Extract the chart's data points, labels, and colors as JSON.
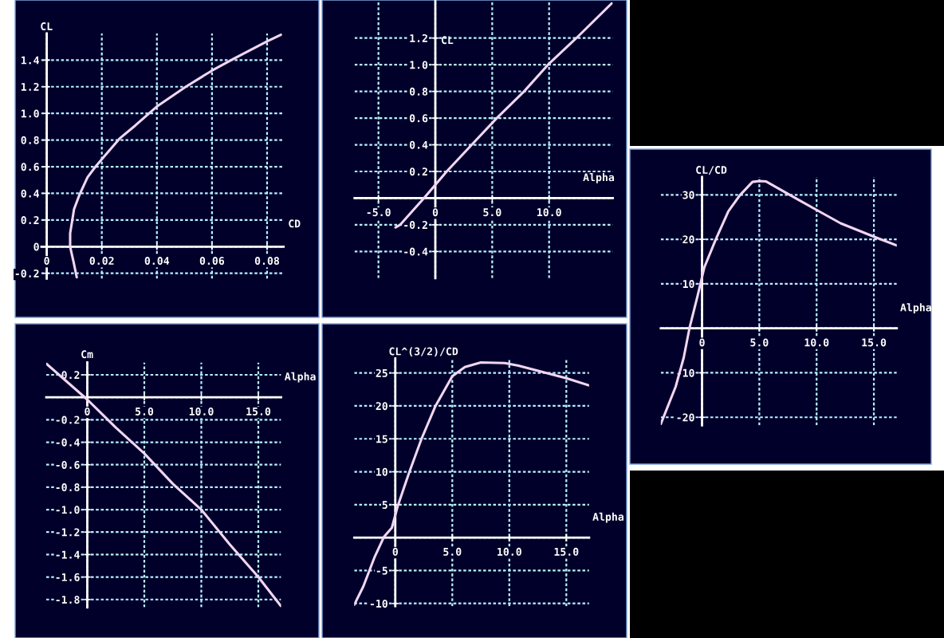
{
  "chart_data": [
    {
      "type": "line",
      "xlabel": "CD",
      "ylabel": "CL",
      "x": [
        0.0109,
        0.0098,
        0.0085,
        0.0085,
        0.0093,
        0.0099,
        0.0119,
        0.0148,
        0.0177,
        0.0206,
        0.0264,
        0.0322,
        0.0399,
        0.0505,
        0.0599,
        0.0679,
        0.08,
        0.085
      ],
      "values": [
        -0.23,
        -0.12,
        0.0,
        0.1,
        0.2,
        0.28,
        0.39,
        0.52,
        0.6,
        0.67,
        0.81,
        0.91,
        1.05,
        1.2,
        1.32,
        1.41,
        1.54,
        1.59
      ],
      "color": "#f2d6f2",
      "xlim": [
        -0.002,
        0.086
      ],
      "ylim": [
        -0.24,
        1.6
      ],
      "xticks": [
        0,
        0.02,
        0.04,
        0.06,
        0.08
      ],
      "yticks": [
        -0.2,
        0,
        0.2,
        0.4,
        0.6,
        0.8,
        {
          "value": 1.0,
          "label": "1.0"
        },
        1.2,
        1.4
      ],
      "grid": true
    },
    {
      "type": "line",
      "xlabel": "Alpha",
      "ylabel": "CL",
      "x": [
        -3.5,
        -3.1,
        -1.0,
        1.0,
        3.2,
        5.4,
        7.8,
        9.9,
        12.4,
        15.5
      ],
      "values": [
        -0.22,
        -0.2,
        0.0,
        0.2,
        0.4,
        0.6,
        0.8,
        1.0,
        1.2,
        1.46
      ],
      "color": "#f2d6f2",
      "xlim": [
        -7.1,
        15.6
      ],
      "ylim": [
        -0.6,
        1.48
      ],
      "xticks": [
        {
          "value": -5,
          "label": "-5.0"
        },
        0,
        {
          "value": 5,
          "label": "5.0"
        },
        {
          "value": 10,
          "label": "10.0"
        }
      ],
      "yticks": [
        -0.4,
        -0.2,
        {
          "value": 0,
          "label": null
        },
        0.2,
        0.4,
        0.6,
        0.8,
        {
          "value": 1.0,
          "label": "1.0"
        },
        1.2
      ],
      "grid": true
    },
    {
      "type": "line",
      "xlabel": "Alpha",
      "ylabel": "CL/CD",
      "x": [
        -3.6,
        -2.3,
        -1.6,
        -1.1,
        -0.4,
        0.2,
        1.2,
        2.3,
        3.3,
        4.4,
        5.0,
        5.6,
        7.5,
        10.0,
        12.1,
        15.0,
        17.0
      ],
      "values": [
        -21.5,
        -13.1,
        -6.6,
        0,
        7.2,
        13.7,
        20,
        26.3,
        29.9,
        32.9,
        33.1,
        33.0,
        30.2,
        26.6,
        23.6,
        20.6,
        18.6
      ],
      "color": "#f2d6f2",
      "xlim": [
        -3.6,
        17.0
      ],
      "ylim": [
        -21.8,
        34
      ],
      "xticks": [
        0,
        {
          "value": 5,
          "label": "5.0"
        },
        {
          "value": 10,
          "label": "10.0"
        },
        {
          "value": 15,
          "label": "15.0"
        }
      ],
      "yticks": [
        -20,
        -10,
        {
          "value": 0,
          "label": null
        },
        10,
        20,
        30
      ],
      "grid": true
    },
    {
      "type": "line",
      "xlabel": "Alpha",
      "ylabel": "Cm",
      "x": [
        -3.6,
        0,
        2.5,
        5.0,
        7.5,
        10.0,
        12.5,
        15.0,
        17.0
      ],
      "values": [
        0.3,
        -0.02,
        -0.27,
        -0.5,
        -0.77,
        -1.0,
        -1.31,
        -1.6,
        -1.86
      ],
      "color": "#f2d6f2",
      "xlim": [
        -3.6,
        17.0
      ],
      "ylim": [
        -1.87,
        0.31
      ],
      "xticks": [
        0,
        {
          "value": 5,
          "label": "5.0"
        },
        {
          "value": 10,
          "label": "10.0"
        },
        {
          "value": 15,
          "label": "15.0"
        }
      ],
      "yticks": [
        -1.8,
        -1.6,
        -1.4,
        -1.2,
        {
          "value": -1.0,
          "label": "-1.0"
        },
        -0.8,
        -0.6,
        -0.4,
        -0.2,
        {
          "value": 0,
          "label": null
        },
        0.2
      ],
      "grid": true
    },
    {
      "type": "line",
      "xlabel": "Alpha",
      "ylabel": "CL^(3/2)/CD",
      "x": [
        -3.6,
        -2.8,
        -1.8,
        -1.0,
        -0.3,
        0.2,
        1.2,
        2.3,
        3.5,
        5.0,
        6.1,
        7.5,
        9.6,
        10.8,
        12.6,
        15.0,
        17.0
      ],
      "values": [
        -10.2,
        -7.4,
        -2.9,
        0.1,
        1.5,
        4.7,
        9.8,
        15.0,
        19.9,
        24.5,
        25.9,
        26.6,
        26.5,
        26.1,
        25.3,
        24.2,
        23.1
      ],
      "color": "#f2d6f2",
      "xlim": [
        -3.6,
        17.0
      ],
      "ylim": [
        -10.4,
        27.2
      ],
      "xticks": [
        0,
        {
          "value": 5,
          "label": "5.0"
        },
        {
          "value": 10,
          "label": "10.0"
        },
        {
          "value": 15,
          "label": "15.0"
        }
      ],
      "yticks": [
        -10,
        -5,
        {
          "value": 0,
          "label": null
        },
        5,
        10,
        15,
        20,
        25
      ],
      "grid": true
    }
  ]
}
